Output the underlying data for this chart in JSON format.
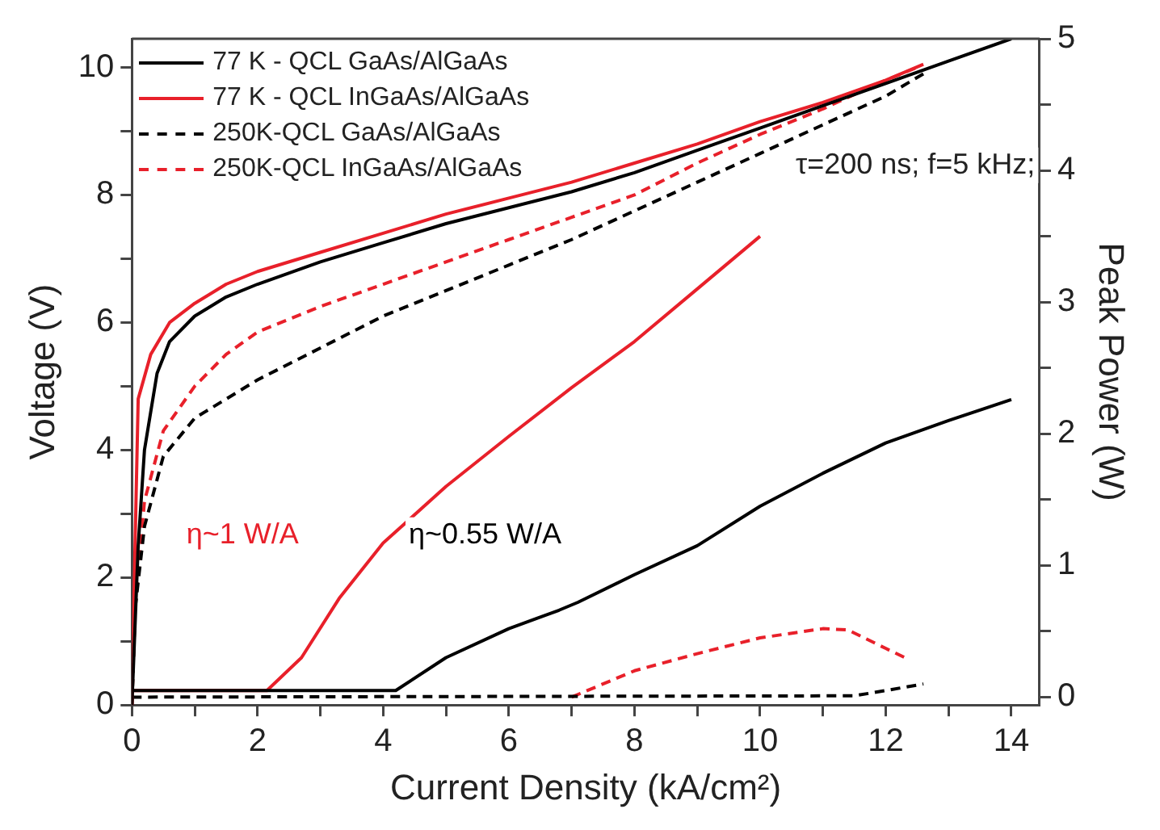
{
  "chart_data": {
    "type": "line",
    "xlabel": "Current Density (kA/cm²)",
    "ylabel": "Voltage (V)",
    "y2label": "Peak Power (W)",
    "xlim": [
      0,
      14.45
    ],
    "xticks": [
      0,
      {
        "value": 1,
        "label": null
      },
      2,
      {
        "value": 3,
        "label": null
      },
      4,
      {
        "value": 5,
        "label": null
      },
      6,
      {
        "value": 7,
        "label": null
      },
      8,
      {
        "value": 9,
        "label": null
      },
      10,
      {
        "value": 11,
        "label": null
      },
      12,
      {
        "value": 13,
        "label": null
      },
      14
    ],
    "ylim": [
      0,
      10.45
    ],
    "yticks": [
      0,
      {
        "value": 1,
        "label": null
      },
      2,
      {
        "value": 3,
        "label": null
      },
      4,
      {
        "value": 5,
        "label": null
      },
      6,
      {
        "value": 7,
        "label": null
      },
      8,
      {
        "value": 9,
        "label": null
      },
      10
    ],
    "y2lim": [
      -0.06,
      5
    ],
    "y2ticks": [
      0,
      {
        "value": 0.5,
        "label": null
      },
      1,
      {
        "value": 1.5,
        "label": null
      },
      2,
      {
        "value": 2.5,
        "label": null
      },
      3,
      {
        "value": 3.5,
        "label": null
      },
      4,
      {
        "value": 4.5,
        "label": null
      },
      5
    ],
    "grid": false,
    "legend": "top left",
    "marker": "none",
    "series": [
      {
        "name": "77 K - QCL GaAs/AlGaAs",
        "color": "#000000",
        "line_style": "solid",
        "x": [
          0,
          0.1,
          0.2,
          0.4,
          0.6,
          1,
          1.5,
          2,
          3,
          4,
          5,
          6,
          7,
          8,
          9,
          10,
          11,
          12,
          13,
          14
        ],
        "values": [
          0,
          2.5,
          4.0,
          5.2,
          5.7,
          6.1,
          6.4,
          6.6,
          6.95,
          7.25,
          7.55,
          7.8,
          8.05,
          8.35,
          8.7,
          9.05,
          9.4,
          9.75,
          10.1,
          10.45
        ]
      },
      {
        "name": "77 K - QCL InGaAs/AlGaAs",
        "color": "#e8202a",
        "line_style": "solid",
        "x": [
          0,
          0.05,
          0.1,
          0.3,
          0.6,
          1,
          1.5,
          2,
          3,
          4,
          5,
          6,
          7,
          8,
          9,
          10,
          11,
          12,
          12.6
        ],
        "values": [
          0,
          2.5,
          4.8,
          5.5,
          6.0,
          6.3,
          6.6,
          6.8,
          7.1,
          7.4,
          7.7,
          7.95,
          8.2,
          8.5,
          8.8,
          9.15,
          9.45,
          9.8,
          10.05
        ]
      },
      {
        "name": "250K-QCL GaAs/AlGaAs",
        "color": "#000000",
        "line_style": "dashed",
        "x": [
          0,
          0.05,
          0.2,
          0.5,
          1,
          2,
          3,
          4,
          5,
          6,
          7,
          8,
          9,
          10,
          11,
          12,
          12.6
        ],
        "values": [
          0,
          1.5,
          2.8,
          3.9,
          4.5,
          5.1,
          5.6,
          6.1,
          6.5,
          6.9,
          7.3,
          7.75,
          8.2,
          8.65,
          9.1,
          9.55,
          9.9
        ]
      },
      {
        "name": "250K-QCL InGaAs/AlGaAs",
        "color": "#e8202a",
        "line_style": "dashed",
        "x": [
          0,
          0.05,
          0.2,
          0.5,
          1,
          1.5,
          2,
          3,
          4,
          5,
          6,
          7,
          8,
          9,
          10,
          11,
          12,
          12.5
        ],
        "values": [
          0,
          1.5,
          3.2,
          4.3,
          5.0,
          5.5,
          5.85,
          6.25,
          6.6,
          6.95,
          7.3,
          7.65,
          8.0,
          8.5,
          8.95,
          9.35,
          9.8,
          10.0
        ]
      },
      {
        "color": "#000000",
        "line_style": "solid",
        "axis": "y2",
        "x": [
          0,
          4.2,
          5,
          6,
          6.8,
          7.1,
          8,
          9,
          10,
          11,
          12,
          13,
          14
        ],
        "values": [
          0.05,
          0.05,
          0.3,
          0.52,
          0.66,
          0.72,
          0.93,
          1.15,
          1.45,
          1.7,
          1.93,
          2.1,
          2.26
        ]
      },
      {
        "color": "#e8202a",
        "line_style": "solid",
        "axis": "y2",
        "x": [
          0,
          2.15,
          2.7,
          3.3,
          4,
          5,
          6,
          7,
          8,
          9,
          10
        ],
        "values": [
          0.05,
          0.05,
          0.3,
          0.75,
          1.17,
          1.6,
          1.98,
          2.35,
          2.7,
          3.1,
          3.5
        ]
      },
      {
        "color": "#000000",
        "line_style": "dashed",
        "axis": "y2",
        "x": [
          0,
          11.5,
          12,
          12.6
        ],
        "values": [
          0,
          0.01,
          0.05,
          0.1
        ]
      },
      {
        "color": "#e8202a",
        "line_style": "dashed",
        "axis": "y2",
        "x": [
          7,
          8,
          9,
          10,
          11,
          11.4,
          12,
          12.35
        ],
        "values": [
          0,
          0.2,
          0.33,
          0.45,
          0.52,
          0.51,
          0.37,
          0.29
        ]
      }
    ],
    "annotations": [
      "τ=200 ns; f=5 kHz;",
      "η~1 W/A",
      "η~0.55 W/A"
    ]
  }
}
